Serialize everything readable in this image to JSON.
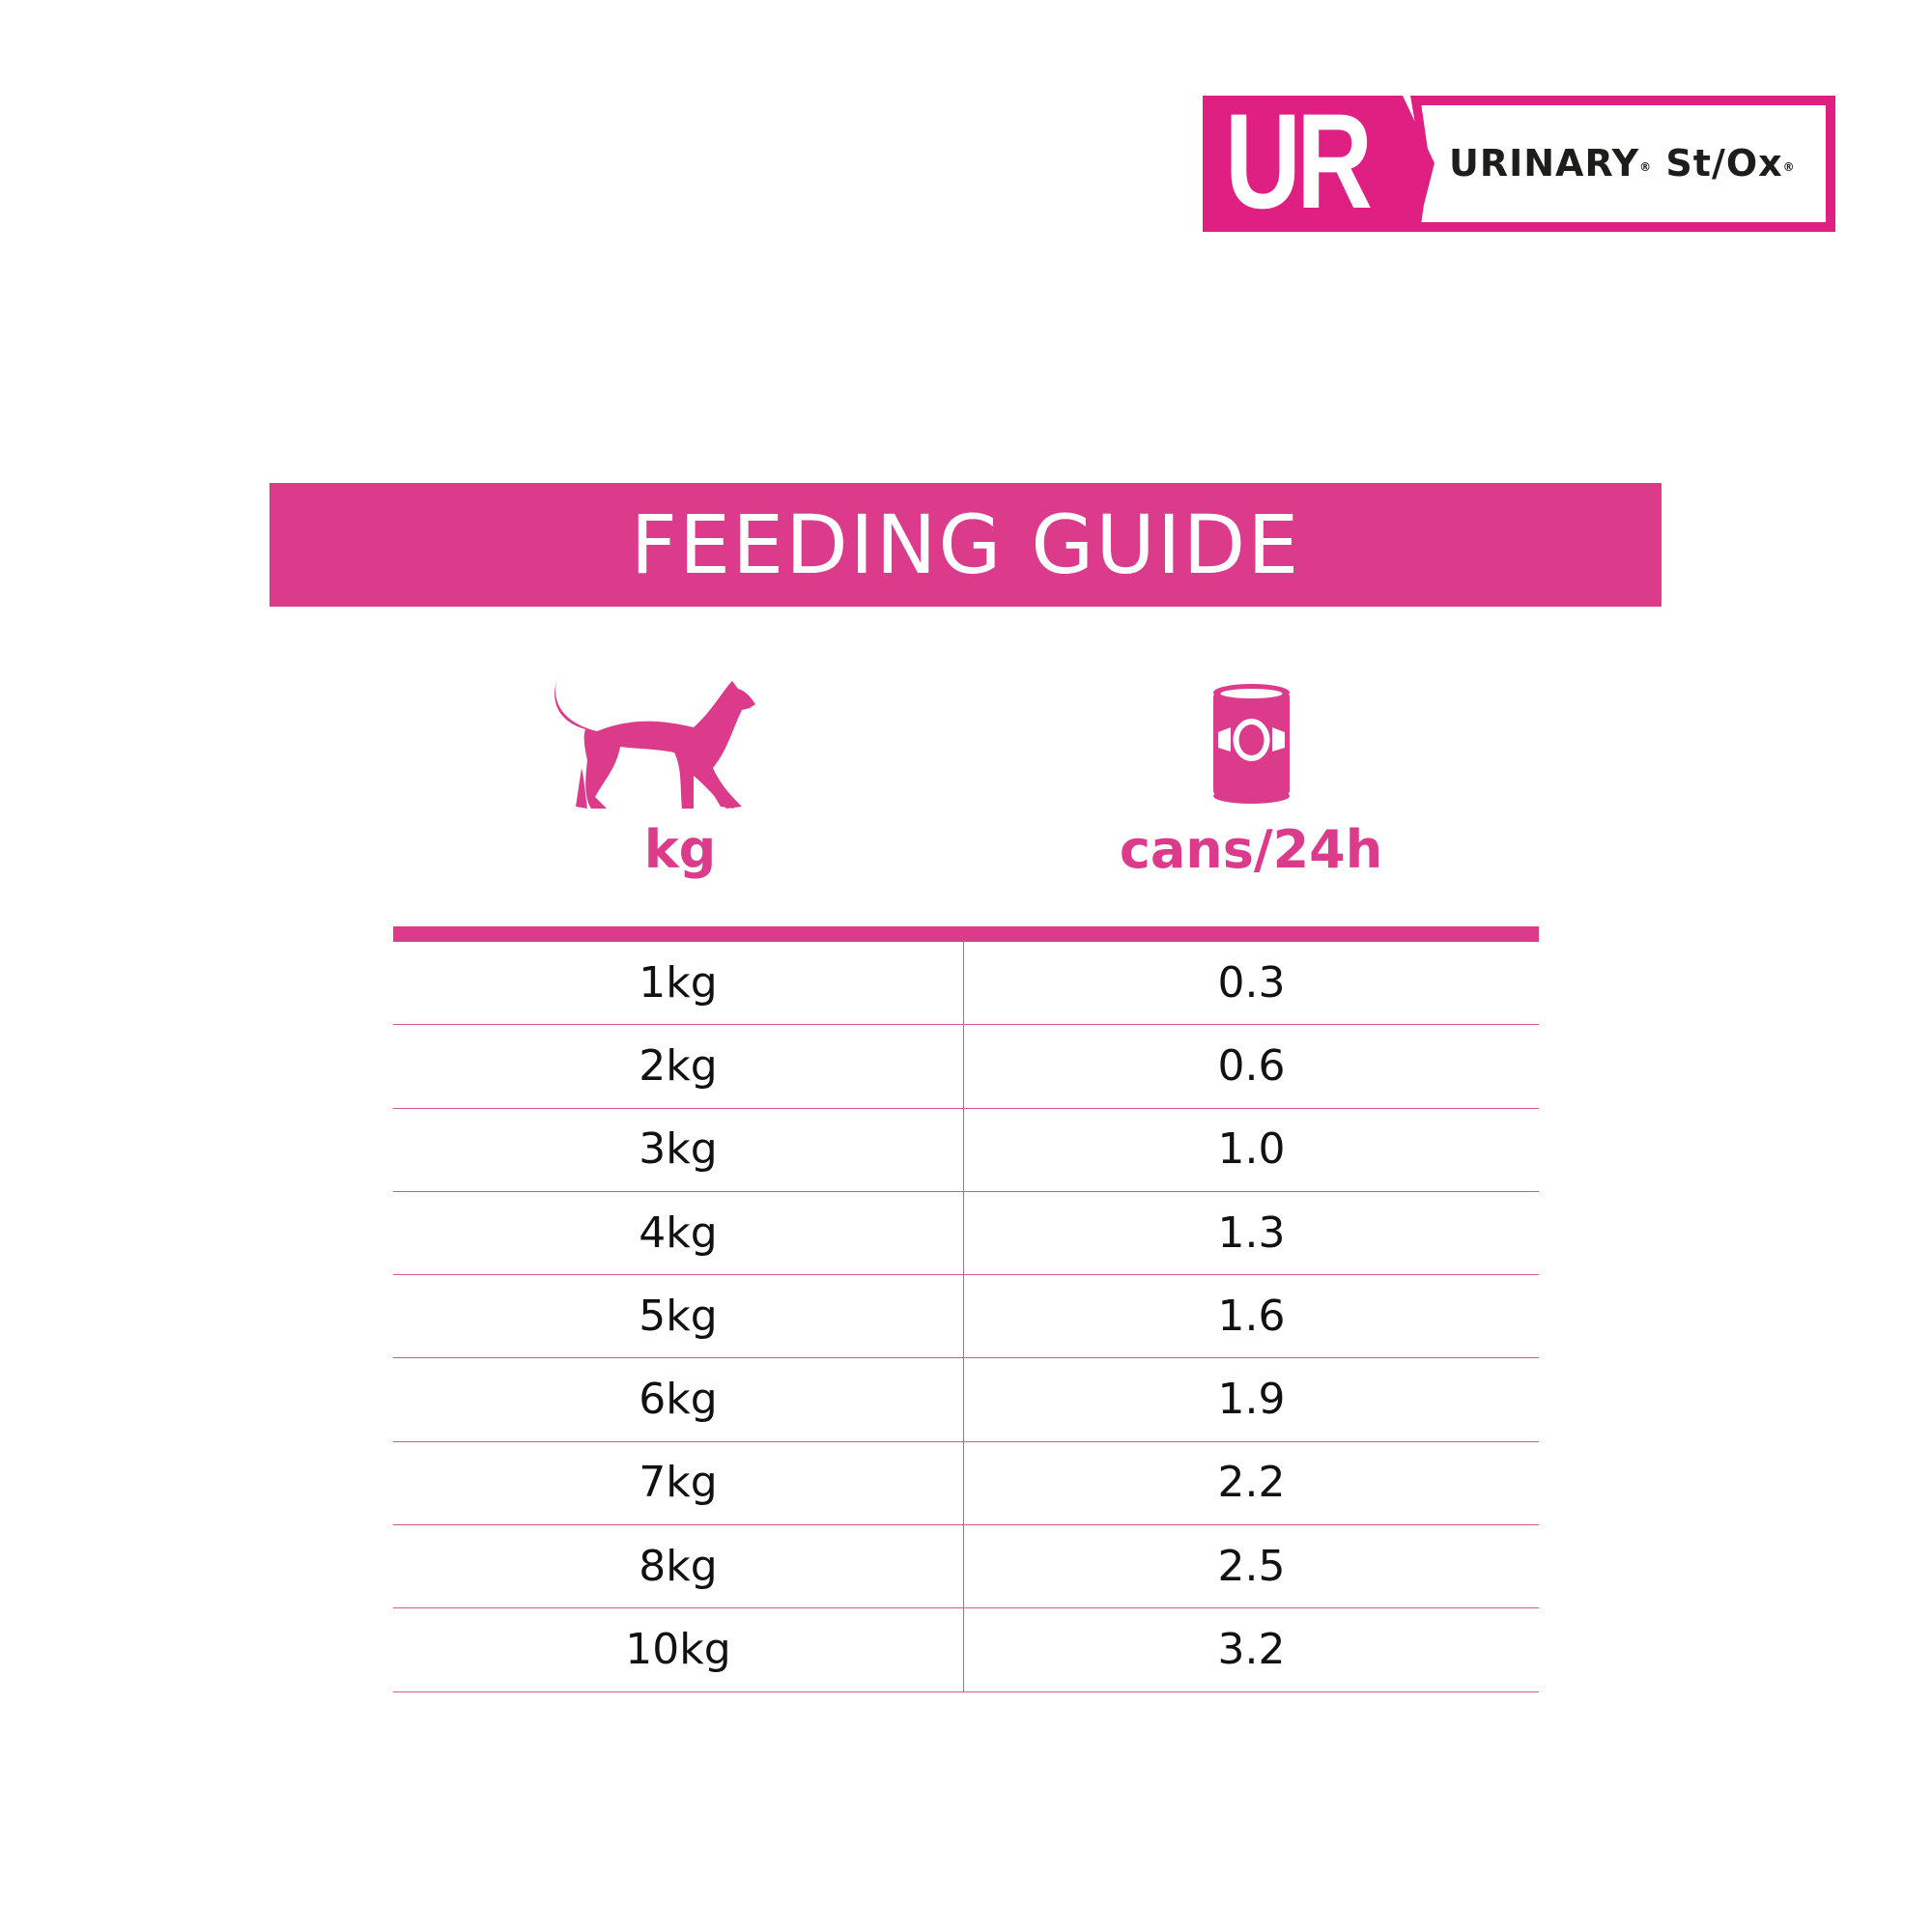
{
  "logo": {
    "abbr": "UR",
    "name": "URINARY",
    "name_suffix": "St/Ox",
    "registered": "®",
    "color": "#df1f82"
  },
  "banner": {
    "title": "FEEDING GUIDE",
    "color": "#dc3b8b"
  },
  "columns": [
    {
      "icon": "cat-icon",
      "label": "kg"
    },
    {
      "icon": "can-icon",
      "label": "cans/24h"
    }
  ],
  "rows": [
    {
      "weight": "1kg",
      "cans": "0.3"
    },
    {
      "weight": "2kg",
      "cans": "0.6"
    },
    {
      "weight": "3kg",
      "cans": "1.0"
    },
    {
      "weight": "4kg",
      "cans": "1.3"
    },
    {
      "weight": "5kg",
      "cans": "1.6"
    },
    {
      "weight": "6kg",
      "cans": "1.9"
    },
    {
      "weight": "7kg",
      "cans": "2.2"
    },
    {
      "weight": "8kg",
      "cans": "2.5"
    },
    {
      "weight": "10kg",
      "cans": "3.2"
    }
  ]
}
